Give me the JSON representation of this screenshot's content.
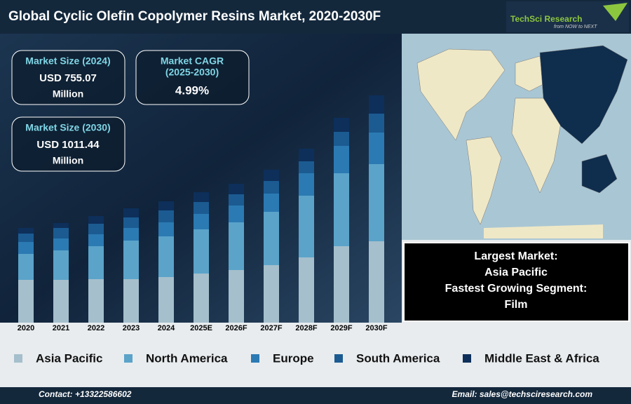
{
  "header": {
    "title": "Global Cyclic Olefin Copolymer Resins Market, 2020-2030F",
    "logo": "TechSci Research",
    "tagline": "from NOW to NEXT"
  },
  "kpis": [
    {
      "label": "Market Size (2024)",
      "value": "USD 755.07",
      "unit": "Million"
    },
    {
      "label": "Market CAGR",
      "period": "(2025-2030)",
      "value": "4.99%"
    },
    {
      "label": "Market Size (2030)",
      "value": "USD 1011.44",
      "unit": "Million"
    }
  ],
  "highlights": [
    "Largest Market:",
    "Asia Pacific",
    "Fastest Growing Segment:",
    "Film"
  ],
  "contact": {
    "phone": "Contact: +13322586602",
    "email": "Email: sales@techsciresearch.com"
  },
  "chart_data": {
    "type": "bar",
    "stacked": true,
    "categories": [
      "2020",
      "2021",
      "2022",
      "2023",
      "2024",
      "2025E",
      "2026F",
      "2027F",
      "2028F",
      "2029F",
      "2030F"
    ],
    "series": [
      {
        "name": "Asia Pacific",
        "color": "#a5bfcc",
        "values": [
          61,
          61,
          62,
          62,
          65,
          70,
          75,
          82,
          93,
          109,
          116
        ]
      },
      {
        "name": "North America",
        "color": "#5ba3c9",
        "values": [
          37,
          42,
          47,
          55,
          58,
          63,
          68,
          76,
          88,
          104,
          110
        ]
      },
      {
        "name": "Europe",
        "color": "#2b7ab3",
        "values": [
          17,
          17,
          17,
          18,
          20,
          22,
          24,
          26,
          32,
          39,
          45
        ]
      },
      {
        "name": "South America",
        "color": "#1b5b92",
        "values": [
          12,
          15,
          15,
          15,
          17,
          17,
          16,
          18,
          17,
          20,
          27
        ]
      },
      {
        "name": "Middle East & Africa",
        "color": "#0d2f5a",
        "values": [
          8,
          7,
          11,
          13,
          13,
          14,
          15,
          16,
          18,
          20,
          26
        ]
      }
    ],
    "ylim": [
      0,
      340
    ]
  }
}
